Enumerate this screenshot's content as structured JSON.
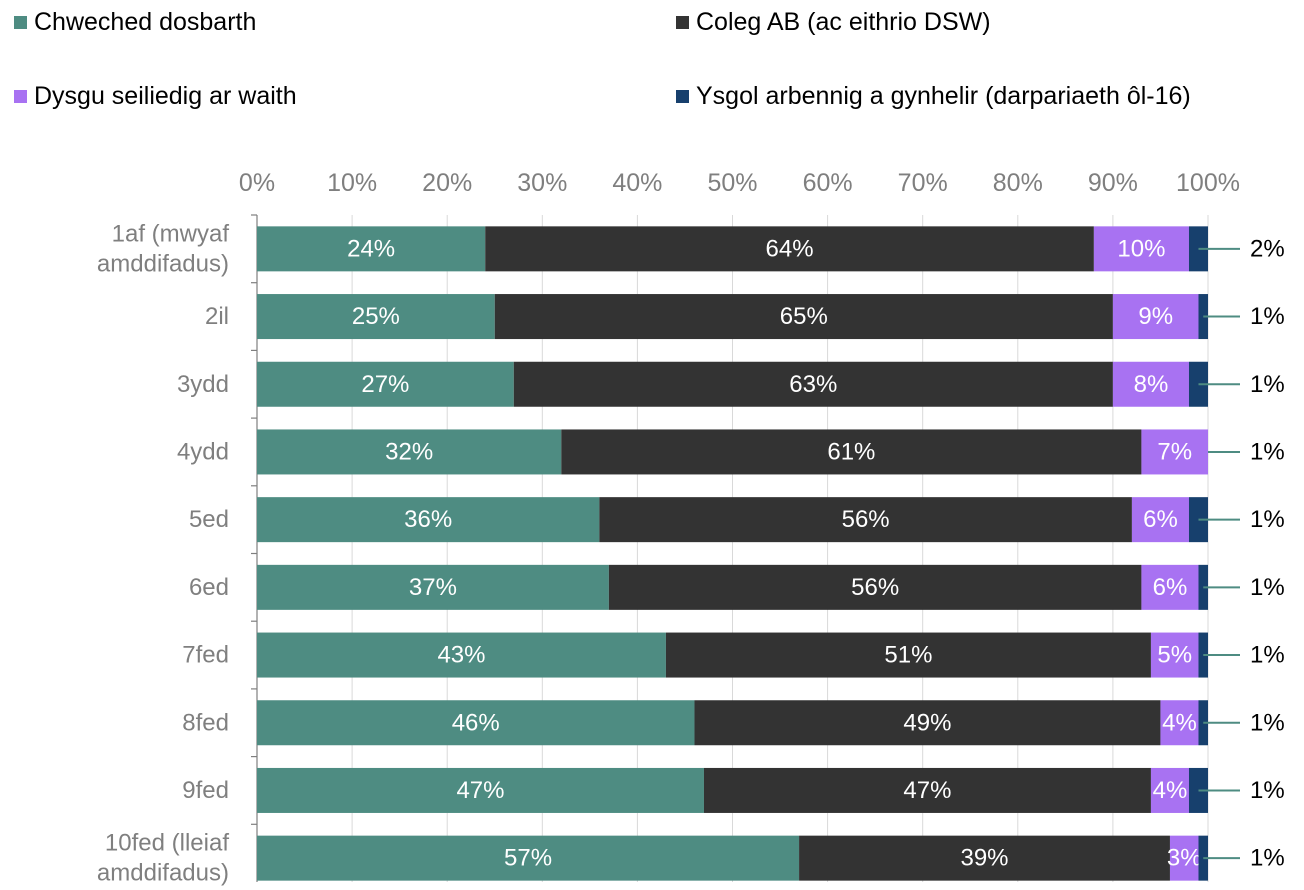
{
  "chart_data": {
    "type": "bar",
    "orientation": "horizontal",
    "stacked": true,
    "percent": true,
    "xlim": [
      0,
      100
    ],
    "x_ticks": [
      "0%",
      "10%",
      "20%",
      "30%",
      "40%",
      "50%",
      "60%",
      "70%",
      "80%",
      "90%",
      "100%"
    ],
    "x_axis_position": "top",
    "grid": "vertical",
    "legend_position": "top",
    "categories": [
      [
        "1af (mwyaf",
        "amddifadus)"
      ],
      [
        "2il"
      ],
      [
        "3ydd"
      ],
      [
        "4ydd"
      ],
      [
        "5ed"
      ],
      [
        "6ed"
      ],
      [
        "7fed"
      ],
      [
        "8fed"
      ],
      [
        "9fed"
      ],
      [
        "10fed (lleiaf",
        "amddifadus)"
      ]
    ],
    "series": [
      {
        "name": "Chweched dosbarth",
        "color": "#4e8c82",
        "values": [
          24,
          25,
          27,
          32,
          36,
          37,
          43,
          46,
          47,
          57
        ],
        "labels": [
          "24%",
          "25%",
          "27%",
          "32%",
          "36%",
          "37%",
          "43%",
          "46%",
          "47%",
          "57%"
        ]
      },
      {
        "name": "Coleg AB (ac eithrio DSW)",
        "color": "#333333",
        "values": [
          64,
          65,
          63,
          61,
          56,
          56,
          51,
          49,
          47,
          39
        ],
        "labels": [
          "64%",
          "65%",
          "63%",
          "61%",
          "56%",
          "56%",
          "51%",
          "49%",
          "47%",
          "39%"
        ]
      },
      {
        "name": "Dysgu seiliedig ar waith",
        "color": "#a872f2",
        "values": [
          10,
          9,
          8,
          7,
          6,
          6,
          5,
          4,
          4,
          3
        ],
        "labels": [
          "10%",
          "9%",
          "8%",
          "7%",
          "6%",
          "6%",
          "5%",
          "4%",
          "4%",
          "3%"
        ]
      },
      {
        "name": "Ysgol arbennig a gynhelir (darpariaeth ôl-16)",
        "color": "#17406d",
        "values": [
          2,
          1,
          1,
          1,
          1,
          1,
          1,
          1,
          1,
          1
        ],
        "labels": [
          "2%",
          "1%",
          "1%",
          "1%",
          "1%",
          "1%",
          "1%",
          "1%",
          "1%",
          "1%"
        ],
        "label_position": "outside-right",
        "leader_color": "#4e8c82"
      }
    ]
  }
}
